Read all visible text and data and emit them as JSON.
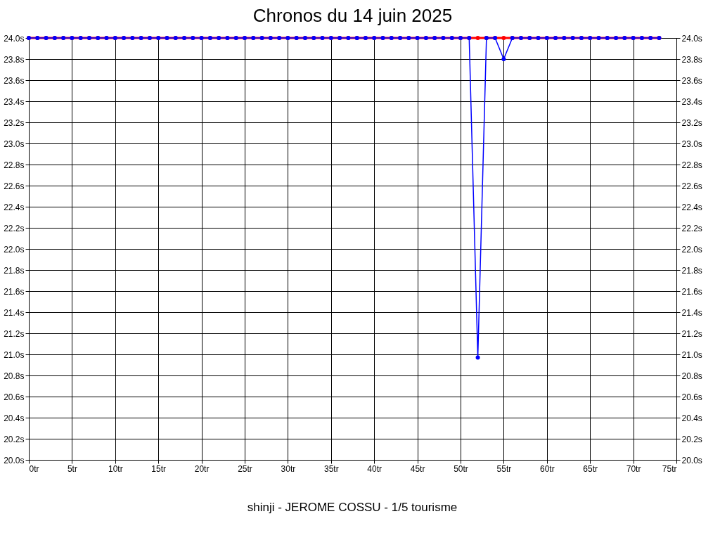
{
  "chart_data": {
    "type": "line",
    "title": "Chronos du 14 juin 2025",
    "annotations": [
      "shinji - JEROME COSSU - 1/5 tourisme"
    ],
    "x": [
      0,
      1,
      2,
      3,
      4,
      5,
      6,
      7,
      8,
      9,
      10,
      11,
      12,
      13,
      14,
      15,
      16,
      17,
      18,
      19,
      20,
      21,
      22,
      23,
      24,
      25,
      26,
      27,
      28,
      29,
      30,
      31,
      32,
      33,
      34,
      35,
      36,
      37,
      38,
      39,
      40,
      41,
      42,
      43,
      44,
      45,
      46,
      47,
      48,
      49,
      50,
      51,
      52,
      53,
      54,
      55,
      56,
      57,
      58,
      59,
      60,
      61,
      62,
      63,
      64,
      65,
      66,
      67,
      68,
      69,
      70,
      71,
      72,
      73
    ],
    "series": [
      {
        "color": "#ff0000",
        "values": [
          24.0,
          24.0,
          24.0,
          24.0,
          24.0,
          24.0,
          24.0,
          24.0,
          24.0,
          24.0,
          24.0,
          24.0,
          24.0,
          24.0,
          24.0,
          24.0,
          24.0,
          24.0,
          24.0,
          24.0,
          24.0,
          24.0,
          24.0,
          24.0,
          24.0,
          24.0,
          24.0,
          24.0,
          24.0,
          24.0,
          24.0,
          24.0,
          24.0,
          24.0,
          24.0,
          24.0,
          24.0,
          24.0,
          24.0,
          24.0,
          24.0,
          24.0,
          24.0,
          24.0,
          24.0,
          24.0,
          24.0,
          24.0,
          24.0,
          24.0,
          24.0,
          24.0,
          24.0,
          24.0,
          24.0,
          24.0,
          24.0,
          24.0,
          24.0,
          24.0,
          24.0,
          24.0,
          24.0,
          24.0,
          24.0,
          24.0,
          24.0,
          24.0,
          24.0,
          24.0,
          24.0,
          24.0,
          24.0,
          24.0
        ]
      },
      {
        "color": "#0000ff",
        "axis": "y2",
        "values": [
          24.0,
          24.0,
          24.0,
          24.0,
          24.0,
          24.0,
          24.0,
          24.0,
          24.0,
          24.0,
          24.0,
          24.0,
          24.0,
          24.0,
          24.0,
          24.0,
          24.0,
          24.0,
          24.0,
          24.0,
          24.0,
          24.0,
          24.0,
          24.0,
          24.0,
          24.0,
          24.0,
          24.0,
          24.0,
          24.0,
          24.0,
          24.0,
          24.0,
          24.0,
          24.0,
          24.0,
          24.0,
          24.0,
          24.0,
          24.0,
          24.0,
          24.0,
          24.0,
          24.0,
          24.0,
          24.0,
          24.0,
          24.0,
          24.0,
          24.0,
          24.0,
          24.0,
          20.97,
          24.0,
          24.0,
          23.8,
          24.0,
          24.0,
          24.0,
          24.0,
          24.0,
          24.0,
          24.0,
          24.0,
          24.0,
          24.0,
          24.0,
          24.0,
          24.0,
          24.0,
          24.0,
          24.0,
          24.0,
          24.0
        ]
      }
    ],
    "xlim": [
      0,
      75
    ],
    "xticks": [
      {
        "value": 0,
        "label": "0tr"
      },
      {
        "value": 5,
        "label": "5tr"
      },
      {
        "value": 10,
        "label": "10tr"
      },
      {
        "value": 15,
        "label": "15tr"
      },
      {
        "value": 20,
        "label": "20tr"
      },
      {
        "value": 25,
        "label": "25tr"
      },
      {
        "value": 30,
        "label": "30tr"
      },
      {
        "value": 35,
        "label": "35tr"
      },
      {
        "value": 40,
        "label": "40tr"
      },
      {
        "value": 45,
        "label": "45tr"
      },
      {
        "value": 50,
        "label": "50tr"
      },
      {
        "value": 55,
        "label": "55tr"
      },
      {
        "value": 60,
        "label": "60tr"
      },
      {
        "value": 65,
        "label": "65tr"
      },
      {
        "value": 70,
        "label": "70tr"
      },
      {
        "value": 75,
        "label": "75tr"
      }
    ],
    "ylim": [
      20.0,
      24.0
    ],
    "yticks": [
      {
        "value": 20.0,
        "label": "20.0s"
      },
      {
        "value": 20.2,
        "label": "20.2s"
      },
      {
        "value": 20.4,
        "label": "20.4s"
      },
      {
        "value": 20.6,
        "label": "20.6s"
      },
      {
        "value": 20.8,
        "label": "20.8s"
      },
      {
        "value": 21.0,
        "label": "21.0s"
      },
      {
        "value": 21.2,
        "label": "21.2s"
      },
      {
        "value": 21.4,
        "label": "21.4s"
      },
      {
        "value": 21.6,
        "label": "21.6s"
      },
      {
        "value": 21.8,
        "label": "21.8s"
      },
      {
        "value": 22.0,
        "label": "22.0s"
      },
      {
        "value": 22.2,
        "label": "22.2s"
      },
      {
        "value": 22.4,
        "label": "22.4s"
      },
      {
        "value": 22.6,
        "label": "22.6s"
      },
      {
        "value": 22.8,
        "label": "22.8s"
      },
      {
        "value": 23.0,
        "label": "23.0s"
      },
      {
        "value": 23.2,
        "label": "23.2s"
      },
      {
        "value": 23.4,
        "label": "23.4s"
      },
      {
        "value": 23.6,
        "label": "23.6s"
      },
      {
        "value": 23.8,
        "label": "23.8s"
      },
      {
        "value": 24.0,
        "label": "24.0s"
      }
    ],
    "y2lim": [
      20.0,
      24.0
    ],
    "y2ticks": [
      {
        "value": 20.0,
        "label": "20.0s"
      },
      {
        "value": 20.2,
        "label": "20.2s"
      },
      {
        "value": 20.4,
        "label": "20.4s"
      },
      {
        "value": 20.6,
        "label": "20.6s"
      },
      {
        "value": 20.8,
        "label": "20.8s"
      },
      {
        "value": 21.0,
        "label": "21.0s"
      },
      {
        "value": 21.2,
        "label": "21.2s"
      },
      {
        "value": 21.4,
        "label": "21.4s"
      },
      {
        "value": 21.6,
        "label": "21.6s"
      },
      {
        "value": 21.8,
        "label": "21.8s"
      },
      {
        "value": 22.0,
        "label": "22.0s"
      },
      {
        "value": 22.2,
        "label": "22.2s"
      },
      {
        "value": 22.4,
        "label": "22.4s"
      },
      {
        "value": 22.6,
        "label": "22.6s"
      },
      {
        "value": 22.8,
        "label": "22.8s"
      },
      {
        "value": 23.0,
        "label": "23.0s"
      },
      {
        "value": 23.2,
        "label": "23.2s"
      },
      {
        "value": 23.4,
        "label": "23.4s"
      },
      {
        "value": 23.6,
        "label": "23.6s"
      },
      {
        "value": 23.8,
        "label": "23.8s"
      },
      {
        "value": 24.0,
        "label": "24.0s"
      }
    ],
    "grid": true,
    "marker": "circle",
    "line_style": "solid"
  }
}
